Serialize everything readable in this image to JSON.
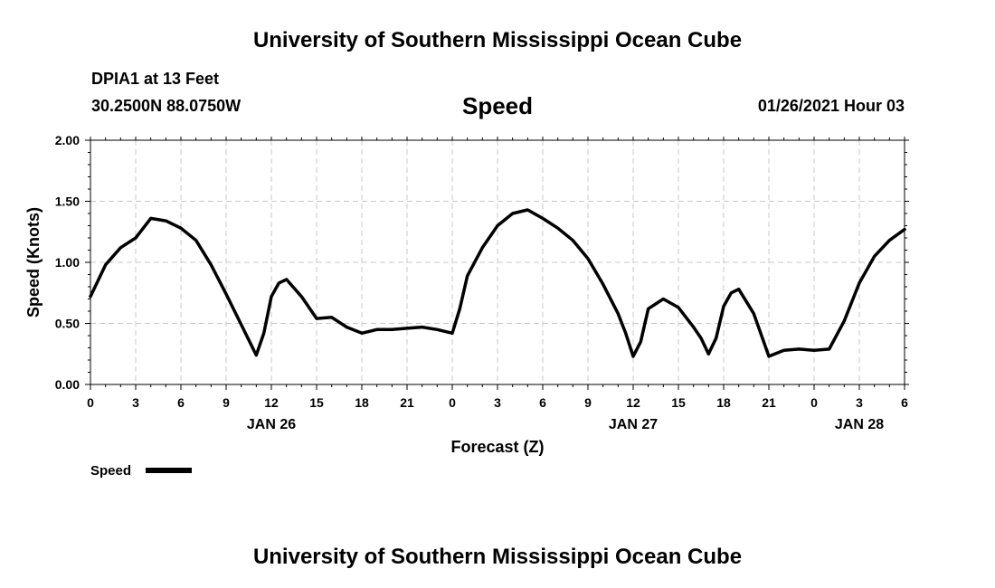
{
  "page": {
    "header_title": "University of Southern Mississippi Ocean Cube",
    "footer_title": "University of Southern Mississippi Ocean Cube",
    "station": "DPIA1 at 13 Feet",
    "coords": "30.2500N 88.0750W",
    "variable": "Speed",
    "issued": "01/26/2021 Hour 03"
  },
  "chart_data": {
    "type": "line",
    "title": "Speed",
    "xlabel": "Forecast (Z)",
    "ylabel": "Speed (Knots)",
    "ylim": [
      0,
      2
    ],
    "xlim": [
      0,
      54
    ],
    "grid": true,
    "yticks": [
      "0.00",
      "0.50",
      "1.00",
      "1.50",
      "2.00"
    ],
    "xtick_labels": [
      "0",
      "3",
      "6",
      "9",
      "12",
      "15",
      "18",
      "21",
      "0",
      "3",
      "6",
      "9",
      "12",
      "15",
      "18",
      "21",
      "0",
      "3",
      "6"
    ],
    "day_labels": [
      {
        "label": "JAN 26",
        "at_hour": 12
      },
      {
        "label": "JAN 27",
        "at_hour": 36
      },
      {
        "label": "JAN 28",
        "at_hour": 51
      }
    ],
    "legend": {
      "position": "bottom-left",
      "label": "Speed"
    },
    "series": [
      {
        "name": "Speed",
        "color": "#000000",
        "x": [
          0,
          1,
          2,
          3,
          4,
          5,
          6,
          7,
          8,
          9,
          10,
          11,
          11.5,
          12,
          12.5,
          13,
          14,
          15,
          16,
          17,
          18,
          19,
          20,
          21,
          22,
          23,
          24,
          24.5,
          25,
          26,
          27,
          28,
          29,
          30,
          31,
          32,
          33,
          34,
          35,
          35.5,
          36,
          36.5,
          37,
          38,
          39,
          40,
          40.5,
          41,
          41.5,
          42,
          42.5,
          43,
          44,
          45,
          46,
          47,
          48,
          49,
          50,
          51,
          52,
          53,
          54
        ],
        "values": [
          0.72,
          0.98,
          1.12,
          1.2,
          1.36,
          1.34,
          1.28,
          1.18,
          0.98,
          0.74,
          0.49,
          0.24,
          0.42,
          0.72,
          0.83,
          0.86,
          0.72,
          0.54,
          0.55,
          0.47,
          0.42,
          0.45,
          0.45,
          0.46,
          0.47,
          0.45,
          0.42,
          0.62,
          0.89,
          1.12,
          1.3,
          1.4,
          1.43,
          1.36,
          1.28,
          1.18,
          1.03,
          0.82,
          0.58,
          0.42,
          0.23,
          0.35,
          0.62,
          0.7,
          0.63,
          0.47,
          0.38,
          0.25,
          0.38,
          0.64,
          0.75,
          0.78,
          0.58,
          0.23,
          0.28,
          0.29,
          0.28,
          0.29,
          0.52,
          0.83,
          1.05,
          1.18,
          1.27
        ]
      }
    ]
  }
}
